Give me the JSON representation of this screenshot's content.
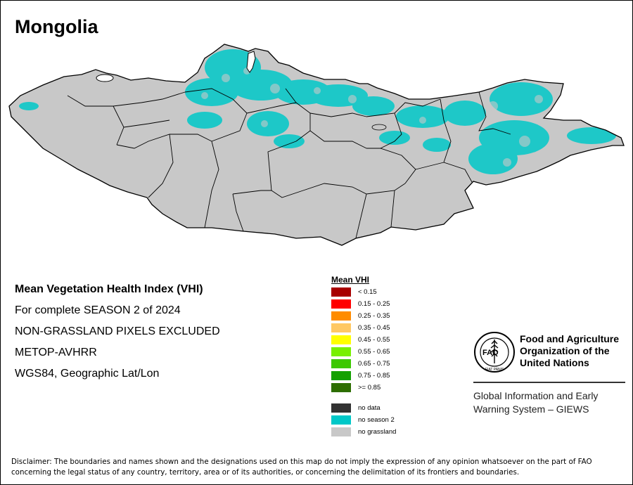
{
  "title": "Mongolia",
  "info": {
    "line1": "Mean Vegetation Health Index (VHI)",
    "line2": "For complete SEASON 2 of 2024",
    "line3": "NON-GRASSLAND PIXELS EXCLUDED",
    "line4": "METOP-AVHRR",
    "line5": "WGS84, Geographic Lat/Lon"
  },
  "legend": {
    "title": "Mean VHI",
    "classes": [
      {
        "label": "< 0.15",
        "color": "#a80000"
      },
      {
        "label": "0.15 - 0.25",
        "color": "#ff0000"
      },
      {
        "label": "0.25 - 0.35",
        "color": "#ff8c00"
      },
      {
        "label": "0.35 - 0.45",
        "color": "#ffc864"
      },
      {
        "label": "0.45 - 0.55",
        "color": "#ffff00"
      },
      {
        "label": "0.55 - 0.65",
        "color": "#78f000"
      },
      {
        "label": "0.65 - 0.75",
        "color": "#3cc800"
      },
      {
        "label": "0.75 - 0.85",
        "color": "#14a000"
      },
      {
        "label": ">= 0.85",
        "color": "#2d6e00"
      }
    ],
    "other": [
      {
        "label": "no data",
        "color": "#323232"
      },
      {
        "label": "no season 2",
        "color": "#00c8c8"
      },
      {
        "label": "no grassland",
        "color": "#c8c8c8"
      }
    ]
  },
  "fao": {
    "org_line1": "Food and Agriculture",
    "org_line2": "Organization of the",
    "org_line3": "United Nations",
    "logo_letters": "FAO",
    "logo_motto": "FIAT PANIS",
    "giews_line1": "Global Information and Early",
    "giews_line2": "Warning System – GIEWS"
  },
  "disclaimer": "Disclaimer: The boundaries and names shown and the designations used on this map do not imply the expression of any opinion whatsoever on the part of FAO concerning the legal status of any country, territory, area or of its authorities, or concerning the delimitation of its frontiers and boundaries.",
  "colors": {
    "land": "#c8c8c8",
    "no_season": "#00c8c8",
    "border": "#000000"
  }
}
